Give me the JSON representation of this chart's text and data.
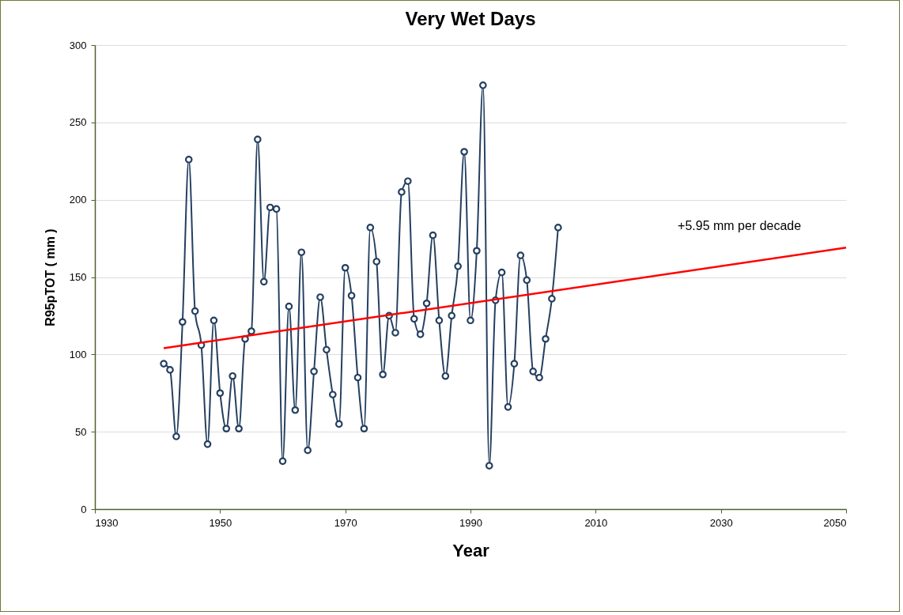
{
  "chart_data": {
    "type": "line",
    "title": "Very Wet Days",
    "xlabel": "Year",
    "ylabel": "R95pTOT ( mm )",
    "x": [
      1941,
      1942,
      1943,
      1944,
      1945,
      1946,
      1947,
      1948,
      1949,
      1950,
      1951,
      1952,
      1953,
      1954,
      1955,
      1956,
      1957,
      1958,
      1959,
      1960,
      1961,
      1962,
      1963,
      1964,
      1965,
      1966,
      1967,
      1968,
      1969,
      1970,
      1971,
      1972,
      1973,
      1974,
      1975,
      1976,
      1977,
      1978,
      1979,
      1980,
      1981,
      1982,
      1983,
      1984,
      1985,
      1986,
      1987,
      1988,
      1989,
      1990,
      1991,
      1992,
      1993,
      1994,
      1995,
      1996,
      1997,
      1998,
      1999,
      2000,
      2001,
      2002,
      2003,
      2004
    ],
    "series": [
      {
        "color": "#243f60",
        "marker": "circle",
        "values": [
          94,
          90,
          47,
          121,
          226,
          128,
          106,
          42,
          122,
          75,
          52,
          86,
          52,
          110,
          115,
          239,
          147,
          195,
          194,
          31,
          131,
          64,
          166,
          38,
          89,
          137,
          103,
          74,
          55,
          156,
          138,
          85,
          52,
          182,
          160,
          87,
          125,
          114,
          205,
          212,
          123,
          113,
          133,
          177,
          122,
          86,
          125,
          157,
          231,
          122,
          167,
          274,
          28,
          135,
          153,
          66,
          94,
          164,
          148,
          89,
          85,
          110,
          136,
          182
        ]
      },
      {
        "type": "line",
        "color": "#ff0000",
        "marker": "none",
        "x": [
          1941,
          2050
        ],
        "values": [
          104,
          169
        ]
      }
    ],
    "annotations": [
      "+5.95 mm per decade"
    ],
    "xlim": [
      1930,
      2050
    ],
    "xticks": [
      1930,
      1950,
      1970,
      1990,
      2010,
      2030,
      2050
    ],
    "ylim": [
      0,
      300
    ],
    "yticks": [
      0,
      50,
      100,
      150,
      200,
      250,
      300
    ],
    "grid": "y"
  }
}
